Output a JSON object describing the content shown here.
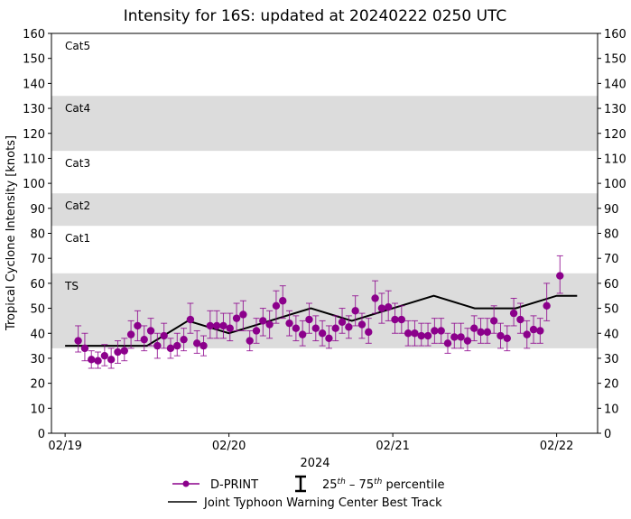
{
  "chart_data": {
    "type": "scatter",
    "title": "Intensity for 16S: updated at 20240222 0250 UTC",
    "xlabel": "2024",
    "ylabel": "Tropical Cyclone Intensity [knots]",
    "ylim": [
      0,
      160
    ],
    "xlim": [
      "2024-02-18T22:00",
      "2024-02-22T06:00"
    ],
    "yticks": [
      0,
      10,
      20,
      30,
      40,
      50,
      60,
      70,
      80,
      90,
      100,
      110,
      120,
      130,
      140,
      150,
      160
    ],
    "xticks": [
      {
        "t": "2024-02-19T00:00",
        "label": "02/19"
      },
      {
        "t": "2024-02-20T00:00",
        "label": "02/20"
      },
      {
        "t": "2024-02-21T00:00",
        "label": "02/21"
      },
      {
        "t": "2024-02-22T00:00",
        "label": "02/22"
      }
    ],
    "grid": false,
    "bands": [
      {
        "label": "TS",
        "from": 34,
        "to": 64,
        "shaded": true
      },
      {
        "label": "Cat1",
        "from": 64,
        "to": 83,
        "shaded": false
      },
      {
        "label": "Cat2",
        "from": 83,
        "to": 96,
        "shaded": true
      },
      {
        "label": "Cat3",
        "from": 96,
        "to": 113,
        "shaded": false
      },
      {
        "label": "Cat4",
        "from": 113,
        "to": 135,
        "shaded": true
      },
      {
        "label": "Cat5",
        "from": 135,
        "to": 160,
        "shaded": false
      }
    ],
    "colors": {
      "dprint": "#8b008b",
      "best_track": "#000000",
      "band": "#dcdcdc"
    },
    "legend_placement": "bottom",
    "legend": {
      "dprint": "D-PRINT",
      "percentile_pre": "25",
      "percentile_sup1": "th",
      "percentile_mid": " – 75",
      "percentile_sup2": "th",
      "percentile_post": " percentile",
      "best_track": "Joint Typhoon Warning Center Best Track"
    },
    "series": [
      {
        "name": "D-PRINT",
        "points": [
          [
            "2024-02-19T01:55",
            37,
            32.5,
            43
          ],
          [
            "2024-02-19T02:53",
            34,
            29,
            40
          ],
          [
            "2024-02-19T03:51",
            29.5,
            26,
            33
          ],
          [
            "2024-02-19T04:49",
            29,
            26,
            32.5
          ],
          [
            "2024-02-19T05:47",
            31,
            27,
            35.5
          ],
          [
            "2024-02-19T06:45",
            29.5,
            26,
            34
          ],
          [
            "2024-02-19T07:43",
            32.5,
            28,
            37
          ],
          [
            "2024-02-19T08:41",
            33,
            29,
            38
          ],
          [
            "2024-02-19T09:39",
            39.5,
            34,
            45
          ],
          [
            "2024-02-19T10:37",
            43,
            37,
            49
          ],
          [
            "2024-02-19T11:35",
            37.5,
            33,
            43
          ],
          [
            "2024-02-19T12:33",
            41,
            35,
            46
          ],
          [
            "2024-02-19T13:31",
            35,
            30,
            40
          ],
          [
            "2024-02-19T14:29",
            39,
            34,
            44
          ],
          [
            "2024-02-19T15:27",
            34,
            30,
            38
          ],
          [
            "2024-02-19T16:25",
            35,
            31,
            40
          ],
          [
            "2024-02-19T17:23",
            37.5,
            33,
            42
          ],
          [
            "2024-02-19T18:21",
            45.5,
            40,
            52
          ],
          [
            "2024-02-19T19:19",
            36,
            32,
            41
          ],
          [
            "2024-02-19T20:17",
            35,
            31,
            39
          ],
          [
            "2024-02-19T21:15",
            43,
            38,
            49
          ],
          [
            "2024-02-19T22:13",
            43,
            38,
            49
          ],
          [
            "2024-02-19T23:11",
            43,
            38,
            48
          ],
          [
            "2024-02-20T00:09",
            42,
            37,
            48
          ],
          [
            "2024-02-20T01:07",
            46,
            41,
            52
          ],
          [
            "2024-02-20T02:05",
            47.5,
            41,
            53
          ],
          [
            "2024-02-20T03:03",
            37,
            33,
            41
          ],
          [
            "2024-02-20T04:01",
            41,
            36,
            46
          ],
          [
            "2024-02-20T04:59",
            45,
            39,
            50
          ],
          [
            "2024-02-20T05:57",
            43.5,
            38,
            49
          ],
          [
            "2024-02-20T06:55",
            51,
            44,
            57
          ],
          [
            "2024-02-20T07:53",
            53,
            46,
            59
          ],
          [
            "2024-02-20T08:51",
            44,
            39,
            49
          ],
          [
            "2024-02-20T09:49",
            42,
            37,
            47
          ],
          [
            "2024-02-20T10:47",
            39.5,
            35,
            45
          ],
          [
            "2024-02-20T11:45",
            45.5,
            40,
            52
          ],
          [
            "2024-02-20T12:43",
            42,
            37,
            47
          ],
          [
            "2024-02-20T13:41",
            40,
            35,
            45
          ],
          [
            "2024-02-20T14:39",
            38,
            34,
            43
          ],
          [
            "2024-02-20T15:37",
            42,
            37,
            47
          ],
          [
            "2024-02-20T16:35",
            44.5,
            40,
            50
          ],
          [
            "2024-02-20T17:33",
            42.5,
            38,
            47
          ],
          [
            "2024-02-20T18:31",
            49,
            43,
            55
          ],
          [
            "2024-02-20T19:29",
            43.5,
            38,
            48
          ],
          [
            "2024-02-20T20:27",
            40.5,
            36,
            46
          ],
          [
            "2024-02-20T21:25",
            54,
            48,
            61
          ],
          [
            "2024-02-20T22:23",
            50,
            44,
            56
          ],
          [
            "2024-02-20T23:21",
            50.5,
            45,
            57
          ],
          [
            "2024-02-21T00:19",
            45.5,
            40,
            52
          ],
          [
            "2024-02-21T01:17",
            45.5,
            40,
            51
          ],
          [
            "2024-02-21T02:15",
            40,
            35,
            45
          ],
          [
            "2024-02-21T03:13",
            40,
            35,
            45
          ],
          [
            "2024-02-21T04:11",
            39,
            35,
            44
          ],
          [
            "2024-02-21T05:09",
            39,
            35,
            44
          ],
          [
            "2024-02-21T06:07",
            41,
            36,
            46
          ],
          [
            "2024-02-21T07:05",
            41,
            36,
            46
          ],
          [
            "2024-02-21T08:03",
            36,
            32,
            40
          ],
          [
            "2024-02-21T09:01",
            38.5,
            34,
            44
          ],
          [
            "2024-02-21T09:59",
            38.5,
            34,
            44
          ],
          [
            "2024-02-21T10:57",
            37,
            33,
            42
          ],
          [
            "2024-02-21T11:55",
            42,
            37,
            47
          ],
          [
            "2024-02-21T12:53",
            40.5,
            36,
            46
          ],
          [
            "2024-02-21T13:51",
            40.5,
            36,
            46
          ],
          [
            "2024-02-21T14:49",
            45,
            40,
            51
          ],
          [
            "2024-02-21T15:47",
            39,
            34,
            44
          ],
          [
            "2024-02-21T16:45",
            38,
            33,
            43
          ],
          [
            "2024-02-21T17:43",
            48,
            43,
            54
          ],
          [
            "2024-02-21T18:41",
            45.5,
            40,
            52
          ],
          [
            "2024-02-21T19:39",
            39.5,
            34,
            45
          ],
          [
            "2024-02-21T20:37",
            41.5,
            36,
            47
          ],
          [
            "2024-02-21T21:35",
            41,
            36,
            46
          ],
          [
            "2024-02-21T22:33",
            51,
            45,
            60
          ],
          [
            "2024-02-22T00:29",
            63,
            56,
            71
          ]
        ]
      },
      {
        "name": "Joint Typhoon Warning Center Best Track",
        "points": [
          [
            "2024-02-19T00:00",
            35
          ],
          [
            "2024-02-19T06:00",
            35
          ],
          [
            "2024-02-19T12:00",
            35
          ],
          [
            "2024-02-19T18:00",
            45
          ],
          [
            "2024-02-20T00:00",
            40
          ],
          [
            "2024-02-20T06:00",
            45
          ],
          [
            "2024-02-20T12:00",
            50
          ],
          [
            "2024-02-20T18:00",
            45
          ],
          [
            "2024-02-21T00:00",
            50
          ],
          [
            "2024-02-21T06:00",
            55
          ],
          [
            "2024-02-21T12:00",
            50
          ],
          [
            "2024-02-21T18:00",
            50
          ],
          [
            "2024-02-22T00:00",
            55
          ],
          [
            "2024-02-22T03:00",
            55
          ]
        ]
      }
    ]
  }
}
